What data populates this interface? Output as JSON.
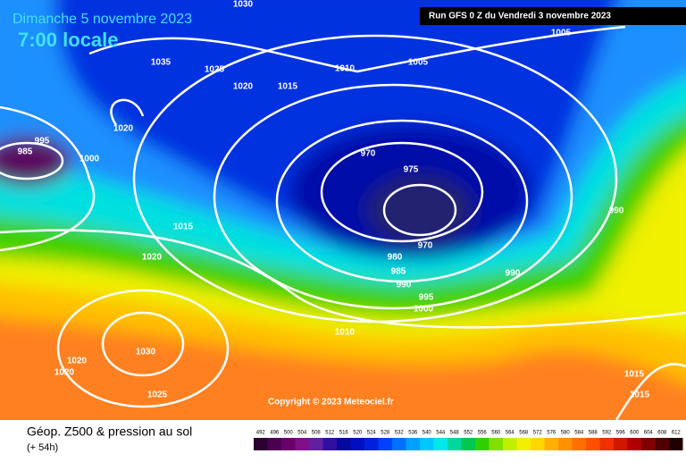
{
  "header": {
    "date": "Dimanche 5 novembre 2023",
    "time": "7:00 locale",
    "run": "Run GFS 0 Z du Vendredi 3 novembre 2023"
  },
  "isobar_labels": [
    1030,
    1035,
    1025,
    1020,
    1015,
    1010,
    1005,
    1005,
    1020,
    995,
    985,
    1000,
    970,
    975,
    990,
    1015,
    970,
    1020,
    980,
    985,
    990,
    990,
    995,
    1000,
    1010,
    1030,
    1020,
    1020,
    1025,
    1015,
    1015
  ],
  "copyright": "Copyright © 2023 Meteociel.fr",
  "footer": {
    "title": "Géop. Z500 & pression au sol",
    "lead": "(+ 54h)"
  },
  "scale": {
    "levels": [
      492,
      496,
      500,
      504,
      508,
      512,
      516,
      520,
      524,
      528,
      532,
      536,
      540,
      544,
      548,
      552,
      556,
      560,
      564,
      568,
      572,
      576,
      580,
      584,
      588,
      592,
      596,
      600,
      604,
      608,
      612
    ],
    "colors": [
      "#2a0030",
      "#4b0050",
      "#6a006a",
      "#80108a",
      "#6020a0",
      "#3010a0",
      "#0808a0",
      "#0010c0",
      "#0020e0",
      "#0040ff",
      "#0070ff",
      "#00a0ff",
      "#00c8ff",
      "#00e8e8",
      "#00d8a0",
      "#00c850",
      "#30d000",
      "#80e000",
      "#c0f000",
      "#f0f000",
      "#ffd800",
      "#ffb000",
      "#ff9000",
      "#ff7000",
      "#ff5000",
      "#f03000",
      "#d01800",
      "#b00000",
      "#800000",
      "#500000",
      "#200000"
    ]
  }
}
